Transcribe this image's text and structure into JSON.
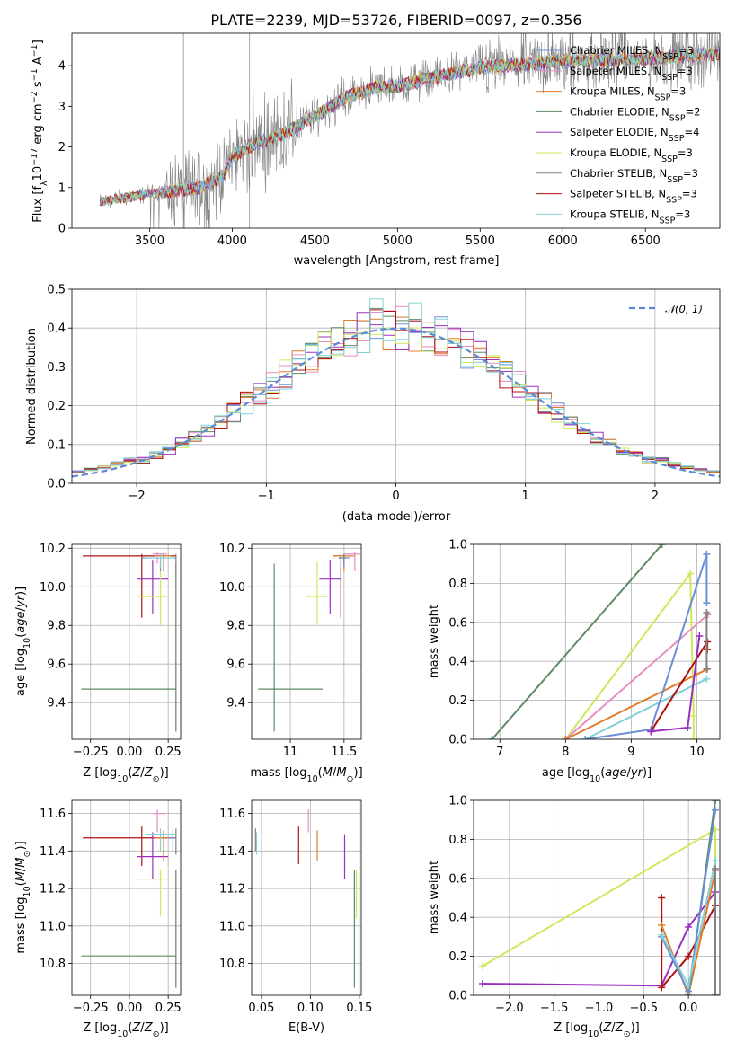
{
  "colors": {
    "chabrier_miles": "#6a8fd6",
    "salpeter_miles": "#e88dc1",
    "kroupa_miles": "#e07b2a",
    "chabrier_elodie": "#5e8a66",
    "salpeter_elodie": "#9b30c0",
    "kroupa_elodie": "#cde85a",
    "chabrier_stelib": "#808080",
    "salpeter_stelib": "#b01010",
    "kroupa_stelib": "#7fd1d8",
    "gauss": "#5b8bd6"
  },
  "chart_data": [
    {
      "id": "spectrum",
      "type": "line",
      "title": "PLATE=2239, MJD=53726, FIBERID=0097, z=0.356",
      "xlabel": "wavelength [Angstrom, rest frame]",
      "ylabel": "Flux [f_λ 10^-17 erg cm^-2 s^-1 A^-1]",
      "xlim": [
        3030,
        6950
      ],
      "ylim": [
        0,
        4.8
      ],
      "xticks": [
        3500,
        4000,
        4500,
        5000,
        5500,
        6000,
        6500
      ],
      "yticks": [
        0,
        1,
        2,
        3,
        4
      ],
      "legend": [
        "Chabrier MILES, N_SSP=3",
        "Salpeter MILES, N_SSP=3",
        "Kroupa MILES, N_SSP=3",
        "Chabrier ELODIE, N_SSP=2",
        "Salpeter ELODIE, N_SSP=4",
        "Kroupa ELODIE, N_SSP=3",
        "Chabrier STELIB, N_SSP=3",
        "Salpeter STELIB, N_SSP=3",
        "Kroupa STELIB, N_SSP=3"
      ],
      "legend_keys": [
        "chabrier_miles",
        "salpeter_miles",
        "kroupa_miles",
        "chabrier_elodie",
        "salpeter_elodie",
        "kroupa_elodie",
        "chabrier_stelib",
        "salpeter_stelib",
        "kroupa_stelib"
      ],
      "legend_loc": "top-right",
      "continuum": {
        "x": [
          3200,
          3500,
          3800,
          3950,
          4000,
          4100,
          4300,
          4500,
          4700,
          4850,
          5000,
          5200,
          5500,
          5800,
          6000,
          6300,
          6600,
          6900
        ],
        "y": [
          0.65,
          0.85,
          1.0,
          1.3,
          1.75,
          2.0,
          2.3,
          2.75,
          3.25,
          3.45,
          3.5,
          3.7,
          3.95,
          4.05,
          4.1,
          4.15,
          4.2,
          4.3
        ]
      }
    },
    {
      "id": "residuals",
      "type": "histogram",
      "xlabel": "(data-model)/error",
      "ylabel": "Normed distribution",
      "xlim": [
        -2.5,
        2.5
      ],
      "ylim": [
        0,
        0.5
      ],
      "xticks": [
        -2,
        -1,
        0,
        1,
        2
      ],
      "yticks": [
        0.0,
        0.1,
        0.2,
        0.3,
        0.4,
        0.5
      ],
      "legend": "𝒩(0, 1)",
      "legend_loc": "top-right",
      "bin_width": 0.1
    },
    {
      "id": "age_vs_Z",
      "type": "scatter",
      "xlabel": "Z [log10(Z/Z⊙)]",
      "ylabel": "age  [log10(age/yr)]",
      "xlim": [
        -0.37,
        0.33
      ],
      "ylim": [
        9.21,
        10.22
      ],
      "xticks": [
        -0.25,
        0.0,
        0.25
      ],
      "xticklabels": [
        "−0.25",
        "0.00",
        "0.25"
      ],
      "yticks": [
        9.4,
        9.6,
        9.8,
        10.0,
        10.2
      ],
      "points": [
        {
          "k": "chabrier_elodie",
          "x": 0.0,
          "y": 9.47,
          "xe": [
            -0.31,
            0.3
          ],
          "ye": [
            9.47,
            9.47
          ]
        },
        {
          "k": "chabrier_elodie",
          "x": 0.3,
          "y": 9.47,
          "xe": [
            0.3,
            0.3
          ],
          "ye": [
            9.25,
            10.12
          ]
        },
        {
          "k": "salpeter_stelib",
          "x": -0.3,
          "y": 10.16,
          "xe": [
            -0.3,
            0.3
          ],
          "ye": [
            10.16,
            10.16
          ]
        },
        {
          "k": "salpeter_stelib",
          "x": 0.08,
          "y": 10.16,
          "xe": [
            0.08,
            0.08
          ],
          "ye": [
            9.84,
            10.17
          ]
        },
        {
          "k": "salpeter_elodie",
          "x": 0.15,
          "y": 10.04,
          "xe": [
            0.05,
            0.25
          ],
          "ye": [
            9.86,
            10.14
          ]
        },
        {
          "k": "kroupa_elodie",
          "x": 0.2,
          "y": 9.95,
          "xe": [
            0.05,
            0.25
          ],
          "ye": [
            9.8,
            10.13
          ]
        },
        {
          "k": "kroupa_miles",
          "x": 0.22,
          "y": 10.16,
          "xe": [
            0.16,
            0.27
          ],
          "ye": [
            10.08,
            10.17
          ]
        },
        {
          "k": "chabrier_miles",
          "x": 0.2,
          "y": 10.15,
          "xe": [
            0.08,
            0.3
          ],
          "ye": [
            10.08,
            10.17
          ]
        },
        {
          "k": "salpeter_miles",
          "x": 0.18,
          "y": 10.17,
          "xe": [
            0.15,
            0.24
          ],
          "ye": [
            10.12,
            10.18
          ]
        },
        {
          "k": "kroupa_stelib",
          "x": 0.2,
          "y": 10.15,
          "xe": [
            0.1,
            0.3
          ],
          "ye": [
            10.1,
            10.17
          ]
        },
        {
          "k": "chabrier_stelib",
          "x": 0.3,
          "y": 10.15,
          "xe": [
            0.3,
            0.3
          ],
          "ye": [
            10.08,
            10.17
          ]
        }
      ]
    },
    {
      "id": "age_vs_mass",
      "type": "scatter",
      "xlabel": "mass [log10(M/M⊙)]",
      "ylabel": "",
      "xlim": [
        10.64,
        11.66
      ],
      "ylim": [
        9.21,
        10.22
      ],
      "xticks": [
        11.0,
        11.5
      ],
      "xticklabels": [
        "11",
        "11.5"
      ],
      "yticks": [
        9.4,
        9.6,
        9.8,
        10.0,
        10.2
      ],
      "points": [
        {
          "k": "chabrier_elodie",
          "x": 10.85,
          "y": 9.47,
          "xe": [
            10.7,
            11.3
          ],
          "ye": [
            9.25,
            10.12
          ]
        },
        {
          "k": "kroupa_elodie",
          "x": 11.25,
          "y": 9.95,
          "xe": [
            11.15,
            11.35
          ],
          "ye": [
            9.8,
            10.13
          ]
        },
        {
          "k": "salpeter_elodie",
          "x": 11.37,
          "y": 10.04,
          "xe": [
            11.27,
            11.47
          ],
          "ye": [
            9.86,
            10.14
          ]
        },
        {
          "k": "salpeter_stelib",
          "x": 11.47,
          "y": 10.16,
          "xe": [
            11.4,
            11.5
          ],
          "ye": [
            9.84,
            10.17
          ]
        },
        {
          "k": "kroupa_miles",
          "x": 11.5,
          "y": 10.16,
          "xe": [
            11.4,
            11.6
          ],
          "ye": [
            10.08,
            10.17
          ]
        },
        {
          "k": "salpeter_miles",
          "x": 11.6,
          "y": 10.17,
          "xe": [
            11.5,
            11.65
          ],
          "ye": [
            10.08,
            10.18
          ]
        },
        {
          "k": "chabrier_miles",
          "x": 11.5,
          "y": 10.15,
          "xe": [
            11.45,
            11.55
          ],
          "ye": [
            10.1,
            10.17
          ]
        },
        {
          "k": "kroupa_stelib",
          "x": 11.47,
          "y": 10.15,
          "xe": [
            11.45,
            11.5
          ],
          "ye": [
            10.1,
            10.17
          ]
        },
        {
          "k": "chabrier_stelib",
          "x": 11.5,
          "y": 10.15,
          "xe": [
            11.45,
            11.52
          ],
          "ye": [
            10.12,
            10.17
          ]
        }
      ]
    },
    {
      "id": "weight_vs_age",
      "type": "line",
      "xlabel": "age  [log10(age/yr)]",
      "ylabel": "mass weight",
      "xlim": [
        6.6,
        10.35
      ],
      "ylim": [
        0,
        1.0
      ],
      "xticks": [
        7,
        8,
        9,
        10
      ],
      "yticks": [
        0.0,
        0.2,
        0.4,
        0.6,
        0.8,
        1.0
      ],
      "series": [
        {
          "k": "chabrier_elodie",
          "x": [
            6.88,
            9.47
          ],
          "y": [
            0.0,
            1.0
          ]
        },
        {
          "k": "kroupa_elodie",
          "x": [
            8.0,
            9.9,
            9.95,
            9.95
          ],
          "y": [
            0.0,
            0.85,
            0.12,
            0.0
          ]
        },
        {
          "k": "salpeter_miles",
          "x": [
            8.0,
            10.17
          ],
          "y": [
            0.0,
            0.64
          ]
        },
        {
          "k": "kroupa_miles",
          "x": [
            8.0,
            10.16
          ],
          "y": [
            0.0,
            0.36
          ]
        },
        {
          "k": "kroupa_stelib",
          "x": [
            8.3,
            10.15
          ],
          "y": [
            0.0,
            0.31
          ]
        },
        {
          "k": "chabrier_miles",
          "x": [
            8.3,
            9.3,
            10.15,
            10.15
          ],
          "y": [
            0.0,
            0.05,
            0.95,
            0.7
          ]
        },
        {
          "k": "salpeter_stelib",
          "x": [
            9.3,
            10.16,
            10.16
          ],
          "y": [
            0.04,
            0.5,
            0.46
          ]
        },
        {
          "k": "salpeter_elodie",
          "x": [
            9.3,
            9.86,
            10.04
          ],
          "y": [
            0.04,
            0.06,
            0.53
          ]
        },
        {
          "k": "chabrier_stelib",
          "x": [
            10.15,
            10.15
          ],
          "y": [
            0.36,
            0.65
          ]
        }
      ]
    },
    {
      "id": "mass_vs_Z",
      "type": "scatter",
      "xlabel": "Z [log10(Z/Z⊙)]",
      "ylabel": "mass [log10(M/M⊙)]",
      "xlim": [
        -0.37,
        0.33
      ],
      "ylim": [
        10.63,
        11.67
      ],
      "xticks": [
        -0.25,
        0.0,
        0.25
      ],
      "xticklabels": [
        "−0.25",
        "0.00",
        "0.25"
      ],
      "yticks": [
        10.8,
        11.0,
        11.2,
        11.4,
        11.6
      ],
      "points": [
        {
          "k": "chabrier_elodie",
          "x": 0.0,
          "y": 10.84,
          "xe": [
            -0.31,
            0.3
          ],
          "ye": [
            10.84,
            10.84
          ]
        },
        {
          "k": "chabrier_elodie",
          "x": 0.3,
          "y": 10.84,
          "xe": [
            0.3,
            0.3
          ],
          "ye": [
            10.67,
            11.3
          ]
        },
        {
          "k": "salpeter_stelib",
          "x": -0.3,
          "y": 11.47,
          "xe": [
            -0.3,
            0.3
          ],
          "ye": [
            11.47,
            11.47
          ]
        },
        {
          "k": "salpeter_stelib",
          "x": 0.08,
          "y": 11.47,
          "xe": [
            0.08,
            0.08
          ],
          "ye": [
            11.32,
            11.53
          ]
        },
        {
          "k": "salpeter_elodie",
          "x": 0.15,
          "y": 11.37,
          "xe": [
            0.05,
            0.25
          ],
          "ye": [
            11.25,
            11.5
          ]
        },
        {
          "k": "kroupa_elodie",
          "x": 0.2,
          "y": 11.25,
          "xe": [
            0.05,
            0.25
          ],
          "ye": [
            11.05,
            11.3
          ]
        },
        {
          "k": "kroupa_miles",
          "x": 0.22,
          "y": 11.47,
          "xe": [
            0.16,
            0.27
          ],
          "ye": [
            11.35,
            11.51
          ]
        },
        {
          "k": "salpeter_miles",
          "x": 0.18,
          "y": 11.6,
          "xe": [
            0.15,
            0.24
          ],
          "ye": [
            11.5,
            11.62
          ]
        },
        {
          "k": "chabrier_miles",
          "x": 0.28,
          "y": 11.47,
          "xe": [
            0.25,
            0.3
          ],
          "ye": [
            11.4,
            11.52
          ]
        },
        {
          "k": "kroupa_stelib",
          "x": 0.2,
          "y": 11.49,
          "xe": [
            0.1,
            0.3
          ],
          "ye": [
            11.4,
            11.52
          ]
        },
        {
          "k": "chabrier_stelib",
          "x": 0.3,
          "y": 11.47,
          "xe": [
            0.3,
            0.3
          ],
          "ye": [
            11.38,
            11.52
          ]
        }
      ]
    },
    {
      "id": "mass_vs_ebv",
      "type": "scatter",
      "xlabel": "E(B-V)",
      "ylabel": "",
      "xlim": [
        0.04,
        0.152
      ],
      "ylim": [
        10.63,
        11.67
      ],
      "xticks": [
        0.05,
        0.1,
        0.15
      ],
      "xticklabels": [
        "0.05",
        "0.10",
        "0.15"
      ],
      "yticks": [
        10.8,
        11.0,
        11.2,
        11.4,
        11.6
      ],
      "points": [
        {
          "k": "chabrier_stelib",
          "x": 0.044,
          "y": 11.47,
          "xe": [
            0.044,
            0.044
          ],
          "ye": [
            11.4,
            11.52
          ]
        },
        {
          "k": "kroupa_stelib",
          "x": 0.045,
          "y": 11.45,
          "xe": [
            0.045,
            0.045
          ],
          "ye": [
            11.38,
            11.5
          ]
        },
        {
          "k": "salpeter_stelib",
          "x": 0.088,
          "y": 11.43,
          "xe": [
            0.088,
            0.088
          ],
          "ye": [
            11.33,
            11.53
          ]
        },
        {
          "k": "salpeter_miles",
          "x": 0.098,
          "y": 11.55,
          "xe": [
            0.098,
            0.098
          ],
          "ye": [
            11.5,
            11.62
          ]
        },
        {
          "k": "kroupa_miles",
          "x": 0.107,
          "y": 11.42,
          "xe": [
            0.107,
            0.107
          ],
          "ye": [
            11.35,
            11.51
          ]
        },
        {
          "k": "salpeter_elodie",
          "x": 0.135,
          "y": 11.37,
          "xe": [
            0.135,
            0.135
          ],
          "ye": [
            11.25,
            11.49
          ]
        },
        {
          "k": "chabrier_elodie",
          "x": 0.145,
          "y": 10.98,
          "xe": [
            0.145,
            0.145
          ],
          "ye": [
            10.67,
            11.3
          ]
        },
        {
          "k": "kroupa_elodie",
          "x": 0.147,
          "y": 11.17,
          "xe": [
            0.147,
            0.147
          ],
          "ye": [
            11.04,
            11.3
          ]
        }
      ]
    },
    {
      "id": "weight_vs_Z",
      "type": "line",
      "xlabel": "Z [log10(Z/Z⊙)]",
      "ylabel": "mass weight",
      "xlim": [
        -2.4,
        0.35
      ],
      "ylim": [
        0,
        1.0
      ],
      "xticks": [
        -2.0,
        -1.5,
        -1.0,
        -0.5,
        0.0
      ],
      "xticklabels": [
        "−2.0",
        "−1.5",
        "−1.0",
        "−0.5",
        "0.0"
      ],
      "yticks": [
        0.0,
        0.2,
        0.4,
        0.6,
        0.8,
        1.0
      ],
      "series": [
        {
          "k": "kroupa_elodie",
          "x": [
            -2.3,
            0.3,
            0.3
          ],
          "y": [
            0.15,
            0.85,
            0.0
          ]
        },
        {
          "k": "salpeter_elodie",
          "x": [
            -2.3,
            -0.3,
            0.0,
            0.3
          ],
          "y": [
            0.06,
            0.05,
            0.35,
            0.53
          ]
        },
        {
          "k": "salpeter_stelib",
          "x": [
            -0.3,
            -0.3,
            0.0,
            0.3
          ],
          "y": [
            0.5,
            0.04,
            0.2,
            0.46
          ]
        },
        {
          "k": "kroupa_miles",
          "x": [
            -0.3,
            0.0,
            0.3
          ],
          "y": [
            0.36,
            0.0,
            0.64
          ]
        },
        {
          "k": "chabrier_elodie",
          "x": [
            0.0,
            0.3
          ],
          "y": [
            0.0,
            1.0
          ]
        },
        {
          "k": "chabrier_miles",
          "x": [
            -0.3,
            0.0,
            0.3
          ],
          "y": [
            0.3,
            0.02,
            0.95
          ]
        },
        {
          "k": "kroupa_stelib",
          "x": [
            -0.3,
            0.0,
            0.3
          ],
          "y": [
            0.31,
            0.05,
            0.69
          ]
        },
        {
          "k": "salpeter_miles",
          "x": [
            0.3,
            0.3
          ],
          "y": [
            0.0,
            0.64
          ]
        },
        {
          "k": "chabrier_stelib",
          "x": [
            0.3,
            0.3
          ],
          "y": [
            0.0,
            0.65
          ]
        }
      ]
    }
  ]
}
